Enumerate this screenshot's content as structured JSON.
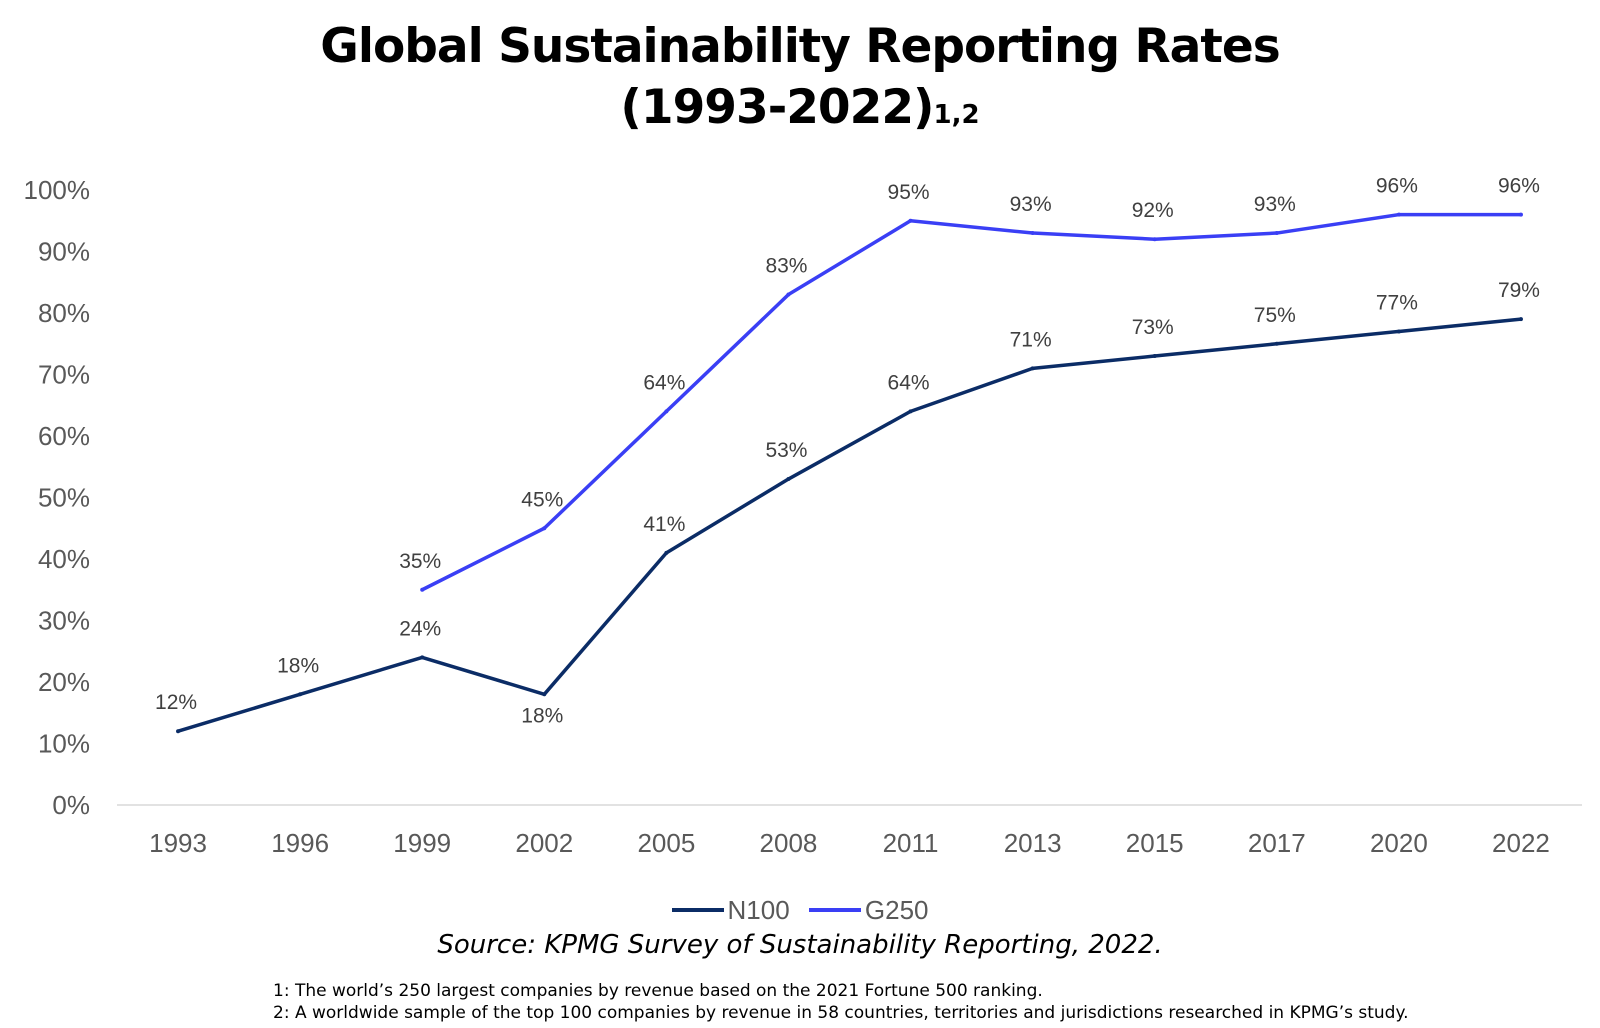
{
  "title": "Global Sustainability Reporting Rates",
  "title_line2": "(1993-2022)",
  "title_superscript": "1,2",
  "chart_data": {
    "type": "line",
    "title": "Global Sustainability Reporting Rates (1993-2022)",
    "xlabel": "",
    "ylabel": "",
    "categories": [
      "1993",
      "1996",
      "1999",
      "2002",
      "2005",
      "2008",
      "2011",
      "2013",
      "2015",
      "2017",
      "2020",
      "2022"
    ],
    "y_ticks": [
      "0%",
      "10%",
      "20%",
      "30%",
      "40%",
      "50%",
      "60%",
      "70%",
      "80%",
      "90%",
      "100%"
    ],
    "ylim": [
      0,
      100
    ],
    "grid": false,
    "legend_position": "bottom",
    "series": [
      {
        "name": "N100",
        "color": "#0b2c66",
        "values": [
          12,
          18,
          24,
          18,
          41,
          53,
          64,
          71,
          73,
          75,
          77,
          79
        ],
        "labels": [
          "12%",
          "18%",
          "24%",
          "18%",
          "41%",
          "53%",
          "64%",
          "71%",
          "73%",
          "75%",
          "77%",
          "79%"
        ]
      },
      {
        "name": "G250",
        "color": "#3a3ff5",
        "values": [
          null,
          null,
          35,
          45,
          64,
          83,
          95,
          93,
          92,
          93,
          96,
          96
        ],
        "labels": [
          null,
          null,
          "35%",
          "45%",
          "64%",
          "83%",
          "95%",
          "93%",
          "92%",
          "93%",
          "96%",
          "96%"
        ]
      }
    ]
  },
  "source": "Source: KPMG Survey of Sustainability Reporting, 2022.",
  "footnotes": [
    "1: The world’s 250 largest companies by revenue based on the 2021 Fortune 500 ranking.",
    "2: A worldwide sample of the top 100 companies by revenue in 58 countries, territories and jurisdictions researched in KPMG’s study."
  ]
}
